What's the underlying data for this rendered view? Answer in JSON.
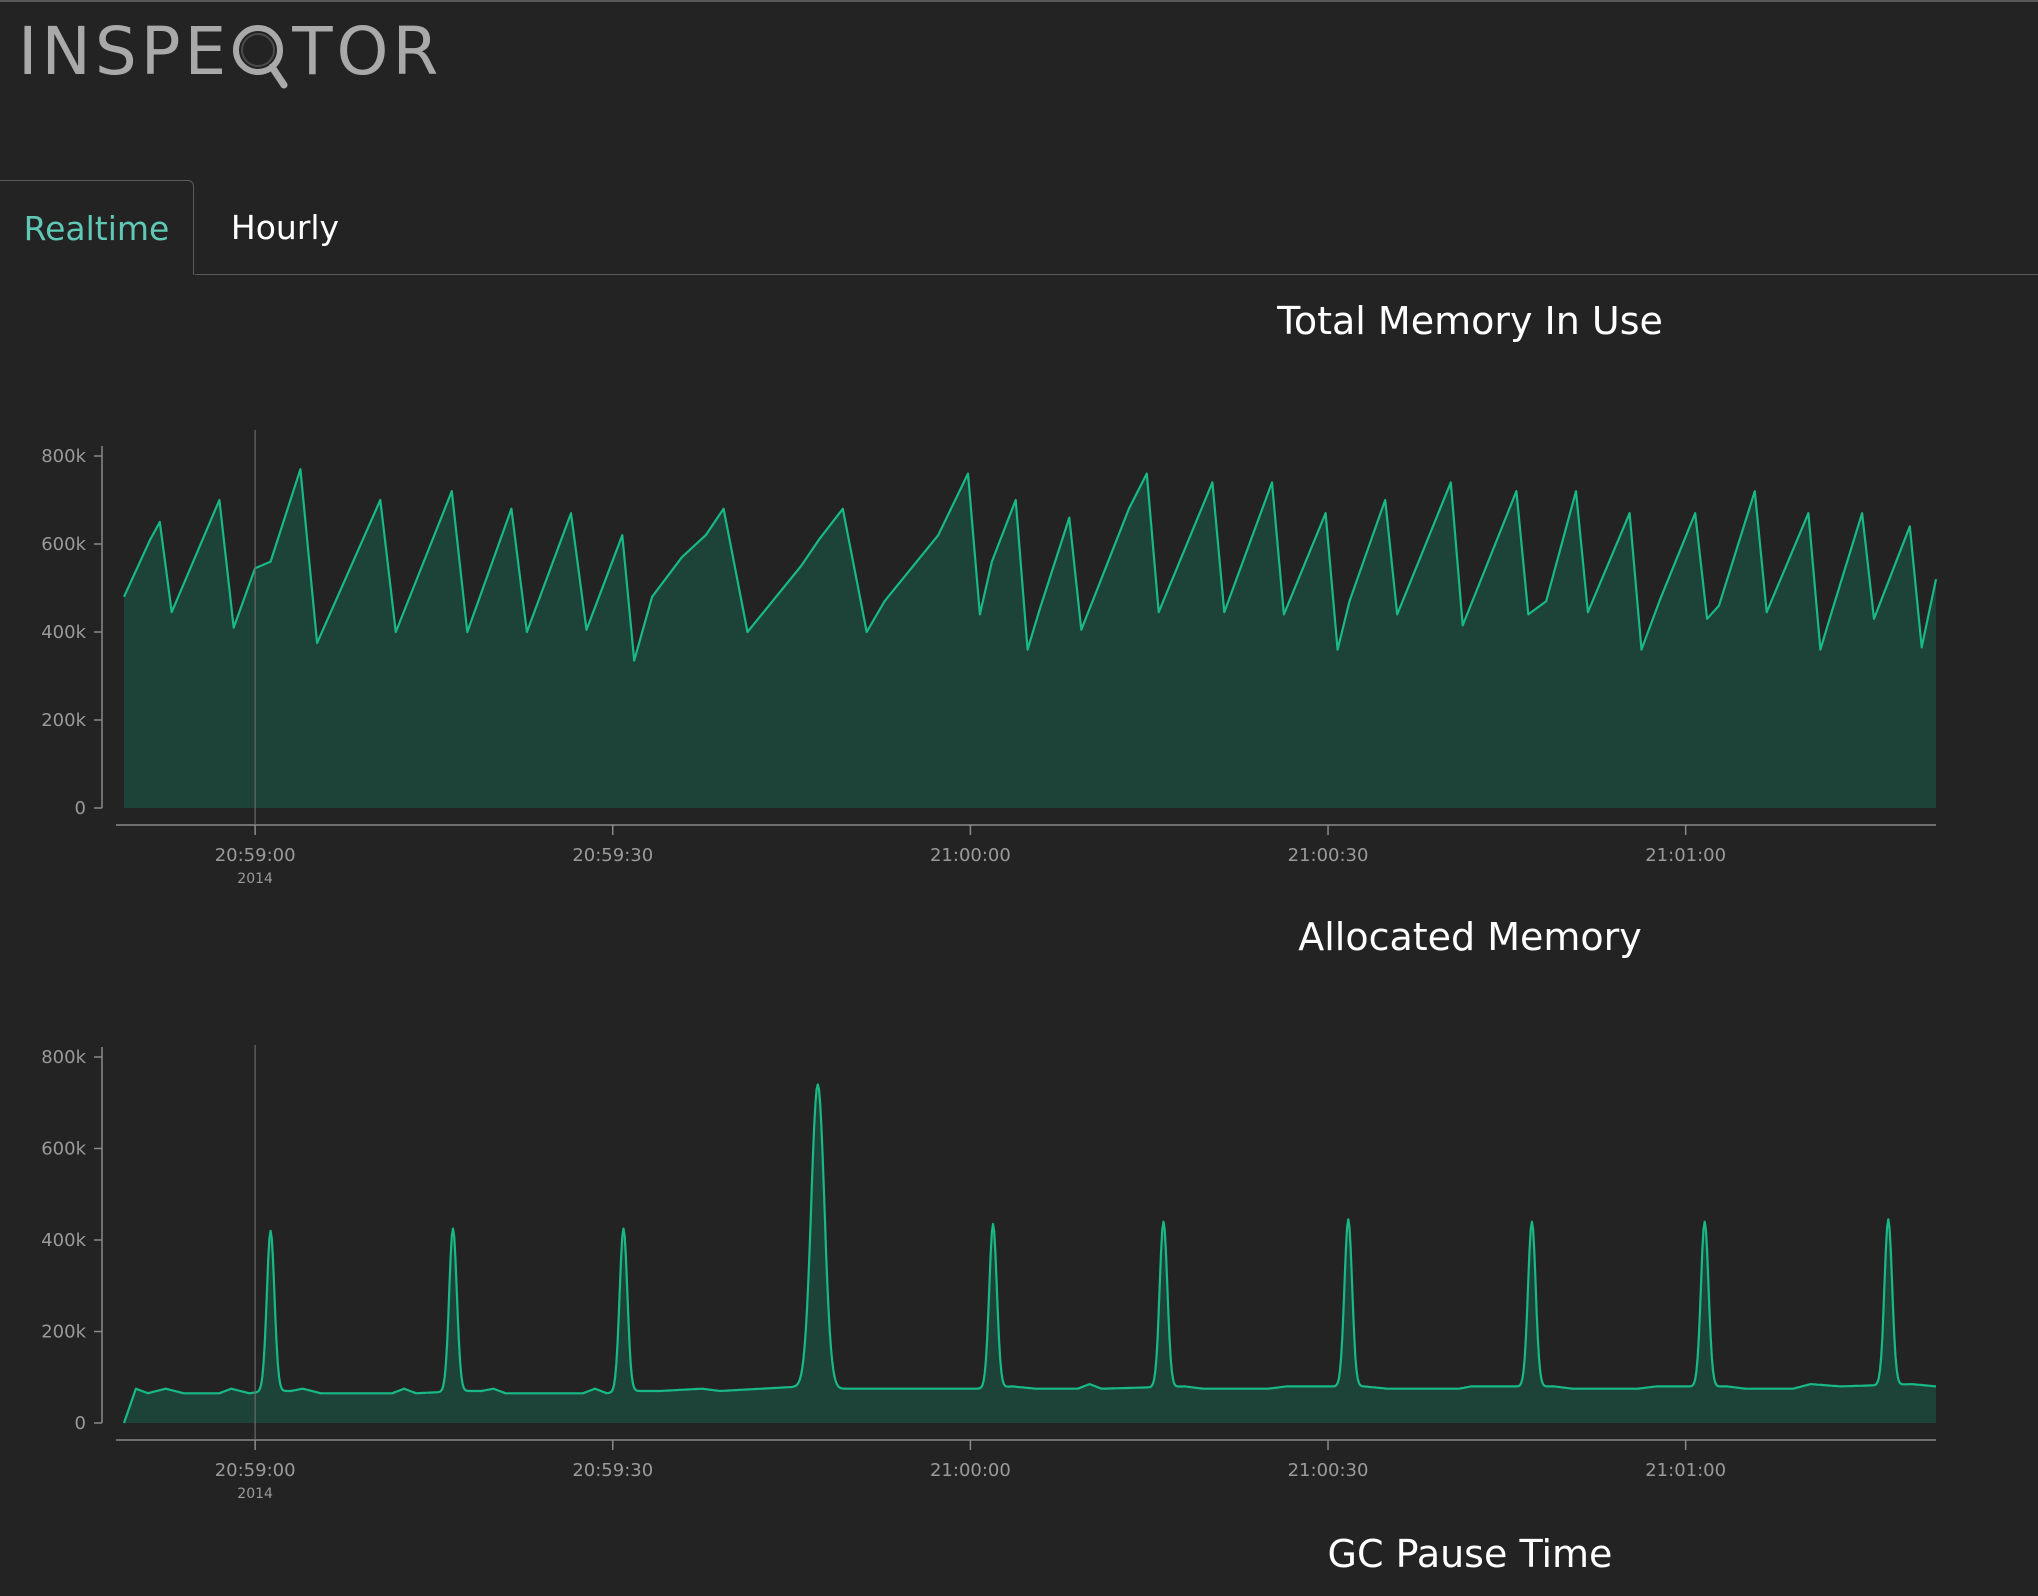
{
  "app": {
    "logo_text_left": "INSPE",
    "logo_text_right": "TOR",
    "logo_icon": "magnifier-icon"
  },
  "tabs": [
    {
      "label": "Realtime",
      "active": true
    },
    {
      "label": "Hourly",
      "active": false
    }
  ],
  "colors": {
    "background": "#232323",
    "accent": "#5fc9b6",
    "series_line": "#18b986",
    "series_fill": "#1d4237",
    "axis": "#9a9a9a"
  },
  "chart_data": [
    {
      "type": "area",
      "title": "Total Memory In Use",
      "xlabel": "",
      "ylabel": "",
      "x_unit": "seconds since 20:58:49",
      "xlim": [
        0,
        152
      ],
      "ylim": [
        0,
        800000
      ],
      "y_ticks": [
        0,
        200000,
        400000,
        600000,
        800000
      ],
      "y_tick_labels": [
        "0",
        "200k",
        "400k",
        "600k",
        "800k"
      ],
      "x_ticks": [
        11,
        41,
        71,
        101,
        131
      ],
      "x_tick_labels": [
        "20:59:00",
        "20:59:30",
        "21:00:00",
        "21:00:30",
        "21:01:00"
      ],
      "x_tick_sublabels": [
        "2014",
        "",
        "",
        "",
        ""
      ],
      "reference_line_x": 11,
      "grid": false,
      "legend": "none",
      "series": [
        {
          "points": [
            [
              0.0,
              480000
            ],
            [
              2.2,
              610000
            ],
            [
              3.0,
              650000
            ],
            [
              4.0,
              445000
            ],
            [
              8.0,
              700000
            ],
            [
              9.2,
              410000
            ],
            [
              11.0,
              545000
            ],
            [
              12.3,
              560000
            ],
            [
              14.8,
              770000
            ],
            [
              16.2,
              375000
            ],
            [
              21.5,
              700000
            ],
            [
              22.8,
              400000
            ],
            [
              27.5,
              720000
            ],
            [
              28.8,
              400000
            ],
            [
              32.5,
              680000
            ],
            [
              33.8,
              400000
            ],
            [
              37.5,
              670000
            ],
            [
              38.8,
              405000
            ],
            [
              41.8,
              620000
            ],
            [
              42.8,
              335000
            ],
            [
              44.3,
              480000
            ],
            [
              46.8,
              570000
            ],
            [
              48.8,
              620000
            ],
            [
              50.3,
              680000
            ],
            [
              52.3,
              400000
            ],
            [
              56.8,
              550000
            ],
            [
              58.3,
              610000
            ],
            [
              60.3,
              680000
            ],
            [
              62.3,
              400000
            ],
            [
              63.8,
              470000
            ],
            [
              68.3,
              620000
            ],
            [
              70.8,
              760000
            ],
            [
              71.8,
              440000
            ],
            [
              72.8,
              560000
            ],
            [
              74.8,
              700000
            ],
            [
              75.8,
              360000
            ],
            [
              76.8,
              450000
            ],
            [
              79.3,
              660000
            ],
            [
              80.3,
              405000
            ],
            [
              84.3,
              680000
            ],
            [
              85.8,
              760000
            ],
            [
              86.8,
              445000
            ],
            [
              91.3,
              740000
            ],
            [
              92.3,
              445000
            ],
            [
              96.3,
              740000
            ],
            [
              97.3,
              440000
            ],
            [
              100.8,
              670000
            ],
            [
              101.8,
              360000
            ],
            [
              102.8,
              470000
            ],
            [
              105.8,
              700000
            ],
            [
              106.8,
              440000
            ],
            [
              111.3,
              740000
            ],
            [
              112.3,
              415000
            ],
            [
              116.8,
              720000
            ],
            [
              117.8,
              440000
            ],
            [
              119.3,
              470000
            ],
            [
              121.8,
              720000
            ],
            [
              122.8,
              445000
            ],
            [
              126.3,
              670000
            ],
            [
              127.3,
              360000
            ],
            [
              128.8,
              470000
            ],
            [
              131.8,
              670000
            ],
            [
              132.8,
              430000
            ],
            [
              133.8,
              460000
            ],
            [
              136.8,
              720000
            ],
            [
              137.8,
              445000
            ],
            [
              141.3,
              670000
            ],
            [
              142.3,
              360000
            ],
            [
              143.3,
              450000
            ],
            [
              145.8,
              670000
            ],
            [
              146.8,
              430000
            ],
            [
              149.8,
              640000
            ],
            [
              150.8,
              365000
            ],
            [
              152.0,
              520000
            ]
          ]
        }
      ]
    },
    {
      "type": "area",
      "title": "Allocated Memory",
      "xlabel": "",
      "ylabel": "",
      "x_unit": "seconds since 20:58:49",
      "xlim": [
        0,
        152
      ],
      "ylim": [
        0,
        800000
      ],
      "y_ticks": [
        0,
        200000,
        400000,
        600000,
        800000
      ],
      "y_tick_labels": [
        "0",
        "200k",
        "400k",
        "600k",
        "800k"
      ],
      "x_ticks": [
        11,
        41,
        71,
        101,
        131
      ],
      "x_tick_labels": [
        "20:59:00",
        "20:59:30",
        "21:00:00",
        "21:00:30",
        "21:01:00"
      ],
      "x_tick_sublabels": [
        "2014",
        "",
        "",
        "",
        ""
      ],
      "reference_line_x": 11,
      "grid": false,
      "legend": "none",
      "baseline_value": 75000,
      "series": [
        {
          "start": [
            0.0,
            0
          ],
          "baseline_points": [
            [
              1.0,
              75000
            ],
            [
              2.0,
              65000
            ],
            [
              3.5,
              75000
            ],
            [
              5.0,
              65000
            ],
            [
              8.0,
              65000
            ],
            [
              9.0,
              75000
            ],
            [
              10.5,
              65000
            ],
            [
              12.0,
              70000
            ],
            [
              14.0,
              70000
            ],
            [
              15.0,
              75000
            ],
            [
              16.5,
              65000
            ],
            [
              22.5,
              65000
            ],
            [
              23.5,
              75000
            ],
            [
              24.5,
              65000
            ],
            [
              28.5,
              70000
            ],
            [
              30.0,
              70000
            ],
            [
              31.0,
              75000
            ],
            [
              32.0,
              65000
            ],
            [
              38.5,
              65000
            ],
            [
              39.5,
              75000
            ],
            [
              40.5,
              65000
            ],
            [
              42.0,
              70000
            ],
            [
              45.0,
              70000
            ],
            [
              48.5,
              75000
            ],
            [
              50.0,
              70000
            ],
            [
              57.0,
              80000
            ],
            [
              60.0,
              75000
            ],
            [
              72.0,
              75000
            ],
            [
              74.5,
              80000
            ],
            [
              76.5,
              75000
            ],
            [
              80.0,
              75000
            ],
            [
              81.0,
              85000
            ],
            [
              82.0,
              75000
            ],
            [
              89.0,
              80000
            ],
            [
              90.5,
              75000
            ],
            [
              96.0,
              75000
            ],
            [
              97.5,
              80000
            ],
            [
              104.0,
              80000
            ],
            [
              106.0,
              75000
            ],
            [
              112.0,
              75000
            ],
            [
              113.0,
              80000
            ],
            [
              120.0,
              80000
            ],
            [
              121.5,
              75000
            ],
            [
              127.0,
              75000
            ],
            [
              128.5,
              80000
            ],
            [
              134.5,
              80000
            ],
            [
              136.0,
              75000
            ],
            [
              140.0,
              75000
            ],
            [
              141.5,
              85000
            ],
            [
              144.0,
              80000
            ],
            [
              150.0,
              85000
            ],
            [
              152.0,
              80000
            ]
          ],
          "spikes": [
            [
              12.3,
              420000
            ],
            [
              27.6,
              425000
            ],
            [
              41.9,
              425000
            ],
            [
              58.2,
              740000
            ],
            [
              72.9,
              435000
            ],
            [
              87.2,
              440000
            ],
            [
              102.7,
              445000
            ],
            [
              118.1,
              440000
            ],
            [
              132.6,
              440000
            ],
            [
              148.0,
              445000
            ]
          ]
        }
      ]
    }
  ],
  "charts_below": [
    {
      "title": "GC Pause Time"
    }
  ]
}
